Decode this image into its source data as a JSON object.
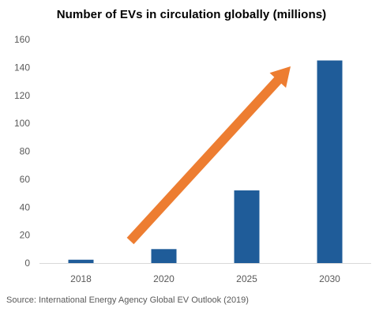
{
  "chart_data": {
    "type": "bar",
    "title": "Number of EVs in circulation globally (millions)",
    "categories": [
      "2018",
      "2020",
      "2025",
      "2030"
    ],
    "values": [
      2.4,
      10,
      52,
      145
    ],
    "ylim": [
      0,
      160
    ],
    "yticks": [
      0,
      20,
      40,
      60,
      80,
      100,
      120,
      140,
      160
    ],
    "xlabel": "",
    "ylabel": "",
    "grid": false,
    "legend": "none",
    "bar_color": "#1F5C99",
    "annotation": {
      "type": "trend-arrow",
      "direction": "up-right",
      "color": "#ED7D31"
    }
  },
  "source": "Source:  International Energy Agency Global EV Outlook (2019)"
}
